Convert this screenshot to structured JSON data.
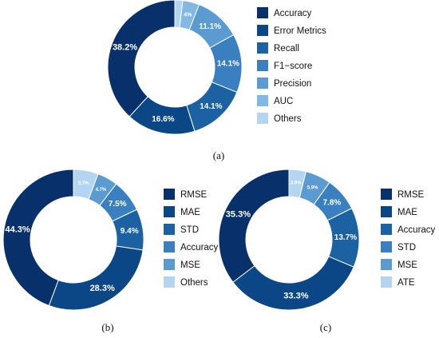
{
  "palette": [
    "#08306b",
    "#0b4687",
    "#1c62a3",
    "#3a7fbf",
    "#5c9bd1",
    "#83b8e3",
    "#b3d5f1"
  ],
  "chart_data": [
    {
      "type": "pie",
      "caption": "(a)",
      "categories": [
        "Accuracy",
        "Error Metrics",
        "Recall",
        "F1-score",
        "Precision",
        "AUC",
        "Others"
      ],
      "values": [
        38.2,
        16.6,
        14.1,
        14.1,
        11.1,
        4.0,
        1.9
      ],
      "labels": [
        "38.2%",
        "16.6%",
        "14.1%",
        "14.1%",
        "11.1%",
        "4%",
        ""
      ],
      "legend": [
        "Accuracy",
        "Error Metrics",
        "Recall",
        "F1−score",
        "Precision",
        "AUC",
        "Others"
      ],
      "legend_position": "right",
      "start": "top",
      "direction": "counterclockwise"
    },
    {
      "type": "pie",
      "caption": "(b)",
      "categories": [
        "RMSE",
        "MAE",
        "STD",
        "Accuracy",
        "MSE",
        "Others"
      ],
      "values": [
        44.3,
        28.3,
        9.4,
        7.5,
        4.7,
        5.7
      ],
      "labels": [
        "44.3%",
        "28.3%",
        "9.4%",
        "7.5%",
        "4.7%",
        "5.7%"
      ],
      "legend": [
        "RMSE",
        "MAE",
        "STD",
        "Accuracy",
        "MSE",
        "Others"
      ],
      "legend_position": "right",
      "start": "top",
      "direction": "counterclockwise"
    },
    {
      "type": "pie",
      "caption": "(c)",
      "categories": [
        "RMSE",
        "MAE",
        "Accuracy",
        "STD",
        "MSE",
        "ATE"
      ],
      "values": [
        35.3,
        33.3,
        13.7,
        7.8,
        5.9,
        3.9
      ],
      "labels": [
        "35.3%",
        "33.3%",
        "13.7%",
        "7.8%",
        "5.9%",
        "3.9%"
      ],
      "legend": [
        "RMSE",
        "MAE",
        "Accuracy",
        "STD",
        "MSE",
        "ATE"
      ],
      "legend_position": "right",
      "start": "top",
      "direction": "counterclockwise"
    }
  ]
}
